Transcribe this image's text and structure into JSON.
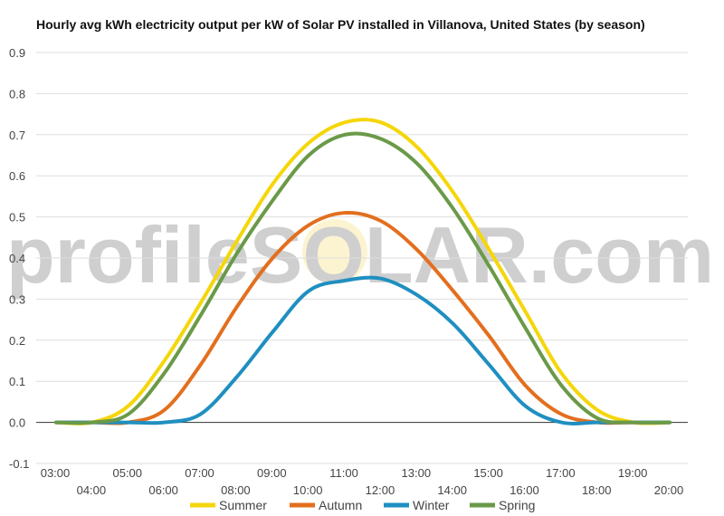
{
  "watermark": "profileSOLAR.com",
  "chart_data": {
    "type": "line",
    "title": "Hourly avg kWh electricity output per kW of Solar PV installed in Villanova, United States (by season)",
    "xlabel": "",
    "ylabel": "",
    "ylim": [
      -0.1,
      0.9
    ],
    "yticks": [
      "-0.1",
      "0.0",
      "0.1",
      "0.2",
      "0.3",
      "0.4",
      "0.5",
      "0.6",
      "0.7",
      "0.8",
      "0.9"
    ],
    "grid": true,
    "legend": "bottom",
    "x": [
      "03:00",
      "04:00",
      "05:00",
      "06:00",
      "07:00",
      "08:00",
      "09:00",
      "10:00",
      "11:00",
      "12:00",
      "13:00",
      "14:00",
      "15:00",
      "16:00",
      "17:00",
      "18:00",
      "19:00",
      "20:00"
    ],
    "series": [
      {
        "name": "Summer",
        "color": "#f5d60a",
        "values": [
          0.0,
          0.0,
          0.04,
          0.15,
          0.29,
          0.44,
          0.58,
          0.68,
          0.73,
          0.73,
          0.67,
          0.56,
          0.42,
          0.27,
          0.12,
          0.03,
          0.0,
          0.0
        ]
      },
      {
        "name": "Autumn",
        "color": "#e36f1e",
        "values": [
          0.0,
          0.0,
          0.0,
          0.03,
          0.14,
          0.28,
          0.4,
          0.48,
          0.51,
          0.49,
          0.42,
          0.32,
          0.21,
          0.09,
          0.02,
          0.0,
          0.0,
          0.0
        ]
      },
      {
        "name": "Winter",
        "color": "#1f8fc0",
        "values": [
          0.0,
          0.0,
          0.0,
          0.0,
          0.02,
          0.11,
          0.22,
          0.32,
          0.345,
          0.35,
          0.31,
          0.24,
          0.14,
          0.04,
          0.0,
          0.0,
          0.0,
          0.0
        ]
      },
      {
        "name": "Spring",
        "color": "#6a9a48",
        "values": [
          0.0,
          0.0,
          0.02,
          0.12,
          0.26,
          0.41,
          0.54,
          0.65,
          0.7,
          0.69,
          0.63,
          0.52,
          0.38,
          0.23,
          0.09,
          0.01,
          0.0,
          0.0
        ]
      }
    ]
  }
}
